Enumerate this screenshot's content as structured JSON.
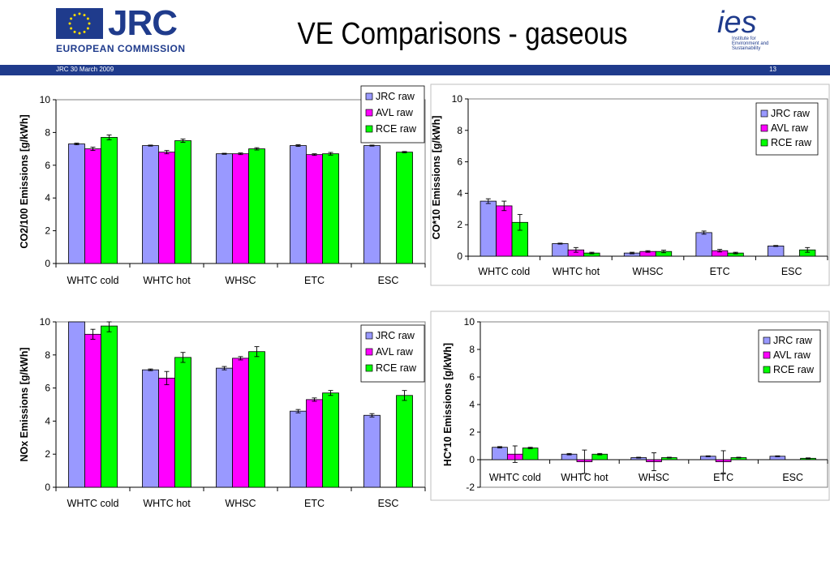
{
  "header": {
    "jrc_logo_text": "JRC",
    "ec_text": "EUROPEAN COMMISSION",
    "title": "VE Comparisons - gaseous",
    "ies_caption": [
      "Institute for",
      "Environment and",
      "Sustainability"
    ],
    "ies_logo_text": "ies"
  },
  "band": {
    "left_text": "JRC  30 March 2009",
    "page_number": "13"
  },
  "colors": {
    "jrc": "#9999ff",
    "avl": "#ff00ff",
    "rce": "#00ff00",
    "band": "#1f3b8c"
  },
  "chart_data": [
    {
      "type": "bar",
      "ylabel": "CO2/100 Emissions [g/kWh]",
      "ylim": [
        0,
        10
      ],
      "yticks": [
        0,
        2,
        4,
        6,
        8,
        10
      ],
      "categories": [
        "WHTC cold",
        "WHTC hot",
        "WHSC",
        "ETC",
        "ESC"
      ],
      "series": [
        {
          "name": "JRC raw",
          "values": [
            7.3,
            7.2,
            6.7,
            7.2,
            7.2
          ],
          "errors": [
            0.05,
            0.03,
            0.03,
            0.05,
            0.03
          ]
        },
        {
          "name": "AVL raw",
          "values": [
            7.0,
            6.8,
            6.7,
            6.65,
            null
          ],
          "errors": [
            0.1,
            0.1,
            0.05,
            0.05,
            null
          ]
        },
        {
          "name": "RCE raw",
          "values": [
            7.7,
            7.5,
            7.0,
            6.7,
            6.8
          ],
          "errors": [
            0.15,
            0.1,
            0.07,
            0.08,
            0.04
          ]
        }
      ],
      "legend": "top-right",
      "grid": false
    },
    {
      "type": "bar",
      "ylabel": "CO*10 Emissions [g/kWh]",
      "ylim": [
        0,
        10
      ],
      "yticks": [
        0,
        2,
        4,
        6,
        8,
        10
      ],
      "categories": [
        "WHTC cold",
        "WHTC hot",
        "WHSC",
        "ETC",
        "ESC"
      ],
      "series": [
        {
          "name": "JRC raw",
          "values": [
            3.5,
            0.8,
            0.2,
            1.5,
            0.65
          ],
          "errors": [
            0.15,
            0.03,
            0.05,
            0.1,
            0.03
          ]
        },
        {
          "name": "AVL raw",
          "values": [
            3.2,
            0.4,
            0.3,
            0.35,
            null
          ],
          "errors": [
            0.3,
            0.15,
            0.05,
            0.08,
            null
          ]
        },
        {
          "name": "RCE raw",
          "values": [
            2.15,
            0.2,
            0.3,
            0.2,
            0.4
          ],
          "errors": [
            0.5,
            0.05,
            0.08,
            0.05,
            0.15
          ]
        }
      ],
      "legend": "top-right",
      "grid": false
    },
    {
      "type": "bar",
      "ylabel": "NOx Emissions [g/kWh]",
      "ylim": [
        0,
        10
      ],
      "yticks": [
        0,
        2,
        4,
        6,
        8,
        10
      ],
      "categories": [
        "WHTC cold",
        "WHTC hot",
        "WHSC",
        "ETC",
        "ESC"
      ],
      "series": [
        {
          "name": "JRC raw",
          "values": [
            10.3,
            7.1,
            7.2,
            4.6,
            4.35
          ],
          "errors": [
            0,
            0.05,
            0.1,
            0.1,
            0.1
          ]
        },
        {
          "name": "AVL raw",
          "values": [
            9.25,
            6.6,
            7.8,
            5.3,
            null
          ],
          "errors": [
            0.3,
            0.4,
            0.1,
            0.1,
            null
          ]
        },
        {
          "name": "RCE raw",
          "values": [
            9.75,
            7.85,
            8.2,
            5.7,
            5.55
          ],
          "errors": [
            0.35,
            0.3,
            0.3,
            0.15,
            0.3
          ]
        }
      ],
      "legend": "top-right",
      "grid": false
    },
    {
      "type": "bar",
      "ylabel": "HC*10 Emissions [g/kWh]",
      "ylim": [
        -2,
        10
      ],
      "yticks": [
        -2,
        0,
        2,
        4,
        6,
        8,
        10
      ],
      "categories": [
        "WHTC cold",
        "WHTC hot",
        "WHSC",
        "ETC",
        "ESC"
      ],
      "series": [
        {
          "name": "JRC raw",
          "values": [
            0.9,
            0.4,
            0.15,
            0.25,
            0.25
          ],
          "errors": [
            0.05,
            0.05,
            0.03,
            0.03,
            0.03
          ]
        },
        {
          "name": "AVL raw",
          "values": [
            0.4,
            -0.15,
            -0.15,
            -0.15,
            null
          ],
          "errors": [
            0.6,
            0.85,
            0.65,
            0.8,
            null
          ]
        },
        {
          "name": "RCE raw",
          "values": [
            0.85,
            0.4,
            0.15,
            0.15,
            0.1
          ],
          "errors": [
            0.05,
            0.05,
            0.03,
            0.03,
            0.03
          ]
        }
      ],
      "legend": "right",
      "grid": false
    }
  ]
}
